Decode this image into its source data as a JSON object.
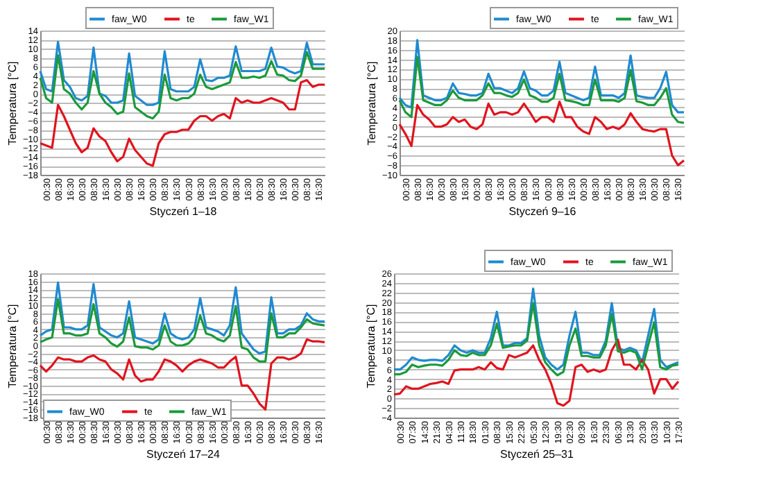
{
  "chart_data": [
    {
      "type": "line",
      "xlabel": "Styczeń 1–18",
      "ylabel": "Temperatura [°C]",
      "legend": "top",
      "grid": "y",
      "ylim": [
        -18,
        14
      ],
      "yticks": [
        -18,
        -16,
        -14,
        -12,
        -10,
        -8,
        -6,
        -4,
        -2,
        0,
        2,
        4,
        6,
        8,
        10,
        12,
        14
      ],
      "categories": [
        null,
        "00:30",
        null,
        "08:30",
        null,
        "16:30",
        null,
        "00:30",
        null,
        "08:30",
        null,
        "16:30",
        null,
        "00:30",
        null,
        "08:30",
        null,
        "16:30",
        null,
        "00:30",
        null,
        "08:30",
        null,
        "16:30",
        null,
        "00:30",
        null,
        "08:30",
        null,
        "16:30",
        null,
        "00:30",
        null,
        "08:30",
        null,
        "16:30",
        null,
        "00:30",
        null,
        "08:30",
        null,
        "16:30",
        null,
        "00:30",
        null,
        "08:30",
        null,
        "16:30",
        null
      ],
      "series": [
        {
          "name": "faw_W0",
          "color": "#1f8ad0",
          "values": [
            5,
            1,
            0.5,
            11.5,
            3,
            1.5,
            -1,
            -1.5,
            -0.5,
            10.2,
            0,
            -0.5,
            -2,
            -2,
            -1.5,
            8.9,
            -0.5,
            -1.5,
            -2.5,
            -2.5,
            -2,
            9.4,
            1,
            0.5,
            0.5,
            0.5,
            1.5,
            7.6,
            3,
            2.8,
            3.5,
            3.5,
            4,
            10.5,
            5,
            5,
            5,
            5,
            5.5,
            10.2,
            6,
            5.8,
            5,
            4.5,
            5,
            11.3,
            6.5,
            6.5,
            6.5
          ]
        },
        {
          "name": "te",
          "color": "#e0141e",
          "values": [
            -11,
            -11.5,
            -12,
            -2.5,
            -5,
            -8,
            -11,
            -13,
            -12,
            -7.7,
            -9.5,
            -10.5,
            -13,
            -15,
            -14,
            -10,
            -12.5,
            -14,
            -15.5,
            -16,
            -11,
            -9,
            -8.5,
            -8.5,
            -8,
            -8,
            -6,
            -5,
            -5,
            -6,
            -5,
            -4.5,
            -5.5,
            -1,
            -2,
            -1.5,
            -2,
            -2,
            -1.5,
            -1,
            -1.5,
            -2,
            -3.5,
            -3.5,
            2.5,
            3,
            1.5,
            2,
            2
          ]
        },
        {
          "name": "faw_W1",
          "color": "#1a9a3a",
          "values": [
            3.5,
            -1,
            -2,
            8.5,
            1,
            0,
            -2,
            -3.5,
            -2,
            5,
            0,
            -2,
            -3,
            -4.5,
            -4,
            4.5,
            -3,
            -4,
            -5,
            -5.5,
            -4,
            4.2,
            -1,
            -1.5,
            -1,
            -1,
            0,
            4.2,
            1.5,
            1,
            1.5,
            2,
            2.5,
            7,
            3.5,
            3.5,
            3.8,
            3.5,
            4,
            7.2,
            4.2,
            4,
            3,
            2.8,
            4,
            9.2,
            5.5,
            5.5,
            5.5
          ]
        }
      ]
    },
    {
      "type": "line",
      "xlabel": "Styczeń 9–16",
      "ylabel": "Temperatura [°C]",
      "legend": "top right",
      "grid": "y",
      "ylim": [
        -10,
        20
      ],
      "yticks": [
        -10,
        -8,
        -6,
        -4,
        -2,
        0,
        2,
        4,
        6,
        8,
        10,
        12,
        14,
        16,
        18,
        20
      ],
      "categories": [
        null,
        "00:30",
        null,
        "08:30",
        null,
        "16:30",
        null,
        "00:30",
        null,
        "08:30",
        null,
        "16:30",
        null,
        "00:30",
        null,
        "08:30",
        null,
        "16:30",
        null,
        "00:30",
        null,
        "08:30",
        null,
        "16:30",
        null,
        "00:30",
        null,
        "08:30",
        null,
        "16:30",
        null,
        "00:30",
        null,
        "08:30",
        null,
        "16:30",
        null,
        "00:30",
        null,
        "08:30",
        null,
        "16:30",
        null,
        "00:30",
        null,
        "08:30",
        null,
        "16:30",
        null
      ],
      "series": [
        {
          "name": "faw_W0",
          "color": "#1f8ad0",
          "values": [
            6,
            4.5,
            4,
            18,
            6.5,
            6,
            5.5,
            5.5,
            6,
            9,
            7,
            6.8,
            6.5,
            6.5,
            7,
            11,
            8,
            8,
            7.5,
            7,
            8,
            11.5,
            8,
            7.5,
            6.5,
            6.5,
            7.5,
            13.5,
            7,
            6.5,
            6,
            5.5,
            6,
            12.5,
            6.5,
            6.5,
            6.5,
            6,
            7,
            14.8,
            6.5,
            6.2,
            6,
            6,
            8,
            11.4,
            4.5,
            3,
            3
          ]
        },
        {
          "name": "te",
          "color": "#e0141e",
          "values": [
            0.5,
            -1.5,
            -4,
            4.5,
            2.5,
            1.5,
            0,
            0,
            0.5,
            2,
            1,
            1.5,
            0,
            -0.5,
            0.5,
            4.8,
            2.5,
            3,
            3,
            2.5,
            3,
            4.8,
            3,
            1,
            2,
            2,
            1,
            5.2,
            2,
            2,
            0,
            -1,
            -1.5,
            2,
            1,
            -0.5,
            0,
            -0.5,
            0.5,
            2.8,
            1,
            -0.5,
            -0.8,
            -1,
            -0.5,
            -0.5,
            -6,
            -8,
            -7
          ]
        },
        {
          "name": "faw_W1",
          "color": "#1a9a3a",
          "values": [
            5.5,
            3,
            2,
            14.5,
            5.5,
            5,
            4.5,
            4.5,
            5.5,
            7.5,
            6,
            5.5,
            5.5,
            5.5,
            6.5,
            9,
            7,
            7,
            6.5,
            6.2,
            7,
            9.8,
            6.5,
            6,
            5.2,
            5.2,
            6,
            11,
            5.5,
            5.3,
            5,
            4.5,
            4.5,
            9.8,
            5.5,
            5.5,
            5.5,
            5.2,
            6,
            11.8,
            5.3,
            5,
            4.5,
            4.5,
            6,
            8,
            2.5,
            1,
            0.8
          ]
        }
      ]
    },
    {
      "type": "line",
      "xlabel": "Styczeń 17–24",
      "ylabel": "Temperatura [°C]",
      "legend": "bottom left",
      "grid": "y",
      "ylim": [
        -18,
        18
      ],
      "yticks": [
        -18,
        -16,
        -14,
        -12,
        -10,
        -8,
        -6,
        -4,
        -2,
        0,
        2,
        4,
        6,
        8,
        10,
        12,
        14,
        16,
        18
      ],
      "categories": [
        null,
        "00:30",
        null,
        "08:30",
        null,
        "16:30",
        null,
        "00:30",
        null,
        "08:30",
        null,
        "16:30",
        null,
        "00:30",
        null,
        "08:30",
        null,
        "16:30",
        null,
        "00:30",
        null,
        "08:30",
        null,
        "16:30",
        null,
        "00:30",
        null,
        "08:30",
        null,
        "16:30",
        null,
        "00:30",
        null,
        "08:30",
        null,
        "16:30",
        null,
        "00:30",
        null,
        "08:30",
        null,
        "16:30",
        null,
        "00:30",
        null,
        "08:30",
        null,
        "16:30",
        null
      ],
      "series": [
        {
          "name": "faw_W0",
          "color": "#1f8ad0",
          "values": [
            2.5,
            3.5,
            4,
            15.7,
            4.5,
            4.5,
            4,
            4,
            5,
            15.3,
            4.5,
            3.5,
            2.5,
            2,
            3,
            11,
            2,
            1.5,
            1,
            0.5,
            1.5,
            8,
            3,
            2,
            1.5,
            2,
            4,
            11.8,
            4.5,
            4,
            3.5,
            2.5,
            5,
            14.5,
            3,
            1,
            -1,
            -2,
            -1.5,
            12,
            3,
            3,
            4,
            4,
            5,
            8,
            6.5,
            6,
            6
          ]
        },
        {
          "name": "te",
          "color": "#e0141e",
          "values": [
            -5,
            -6.5,
            -5,
            -3,
            -3.5,
            -3.5,
            -4,
            -4,
            -3,
            -2.5,
            -3.5,
            -4,
            -6,
            -7,
            -8.5,
            -3.5,
            -7.5,
            -9,
            -8.5,
            -8.5,
            -6.5,
            -3.5,
            -4,
            -5,
            -6.5,
            -5,
            -4,
            -3.5,
            -4,
            -4.5,
            -5.5,
            -5.5,
            -4,
            -2.8,
            -10,
            -10,
            -12,
            -14.5,
            -16,
            -4.5,
            -3,
            -3,
            -3.5,
            -3,
            -2,
            1.5,
            1,
            1,
            0.8
          ]
        },
        {
          "name": "faw_W1",
          "color": "#1a9a3a",
          "values": [
            0.8,
            1.5,
            2,
            11.5,
            3,
            3,
            2.5,
            2.5,
            3,
            10.3,
            3,
            2,
            0.5,
            -0.3,
            1,
            7,
            -0.2,
            -0.5,
            -0.5,
            -1,
            0,
            5,
            1,
            0,
            0,
            0.5,
            2,
            7.5,
            3,
            2.5,
            1.5,
            1,
            2.5,
            9.8,
            -0.5,
            -1,
            -3,
            -4,
            -4,
            8,
            2,
            2,
            3,
            3,
            4.5,
            6.5,
            5.5,
            5.2,
            5
          ]
        }
      ]
    },
    {
      "type": "line",
      "xlabel": "Styczeń 25–31",
      "ylabel": "Temperatura [°C]",
      "legend": "top right",
      "grid": "y",
      "ylim": [
        -4,
        26
      ],
      "yticks": [
        -4,
        -2,
        0,
        2,
        4,
        6,
        8,
        10,
        12,
        14,
        16,
        18,
        20,
        22,
        24,
        26
      ],
      "categories": [
        null,
        "00:30",
        null,
        "07:30",
        null,
        "14:30",
        null,
        "21:30",
        null,
        "04:30",
        null,
        "11:30",
        null,
        "18:30",
        null,
        "01:30",
        null,
        "08:30",
        null,
        "15:30",
        null,
        "22:30",
        null,
        "05:30",
        null,
        "12:30",
        null,
        "19:30",
        null,
        "02:30",
        null,
        "09:30",
        null,
        "16:30",
        null,
        "23:30",
        null,
        "06:30",
        null,
        "13:30",
        null,
        "20:30",
        null,
        "03:30",
        null,
        "10:30",
        null,
        "17:30"
      ],
      "series": [
        {
          "name": "faw_W0",
          "color": "#1f8ad0",
          "values": [
            6,
            6,
            7,
            8.5,
            8,
            7.8,
            8,
            8,
            7.8,
            9,
            11,
            10,
            9.5,
            10,
            9.5,
            9.5,
            12.5,
            18,
            11,
            11,
            11.5,
            11.5,
            12.5,
            22.8,
            13,
            8.5,
            7,
            6,
            7,
            13,
            18,
            9.5,
            9.5,
            9,
            9,
            12,
            19.8,
            10.5,
            10,
            10.5,
            10,
            7.5,
            13,
            18.6,
            8,
            6.5,
            7,
            7.5
          ]
        },
        {
          "name": "te",
          "color": "#e0141e",
          "values": [
            0.8,
            1,
            2.5,
            2,
            2,
            2.5,
            3,
            3.2,
            3.5,
            3,
            5.8,
            6,
            6,
            6,
            6.5,
            6,
            7.5,
            6.3,
            6,
            9,
            8.5,
            9,
            9.5,
            11,
            8,
            6,
            3,
            -1,
            -1.5,
            -0.5,
            6.5,
            7,
            5.5,
            6,
            5.5,
            6,
            10,
            12.2,
            7,
            7,
            6,
            8,
            6,
            1,
            4,
            4,
            2,
            3.5
          ]
        },
        {
          "name": "faw_W1",
          "color": "#1a9a3a",
          "values": [
            5,
            5,
            5.5,
            7,
            6.5,
            6.8,
            7,
            7,
            6.8,
            8,
            10,
            9,
            8.8,
            9.5,
            9,
            9,
            11,
            15.5,
            10.5,
            10.8,
            11,
            11,
            12,
            19.8,
            11,
            7.5,
            6,
            4.8,
            5.5,
            11,
            14.5,
            8.8,
            8.8,
            8.5,
            8.5,
            11,
            17.5,
            9.8,
            9.5,
            10,
            9.5,
            6,
            11,
            15.8,
            6.5,
            6,
            6.8,
            7
          ]
        }
      ]
    }
  ]
}
